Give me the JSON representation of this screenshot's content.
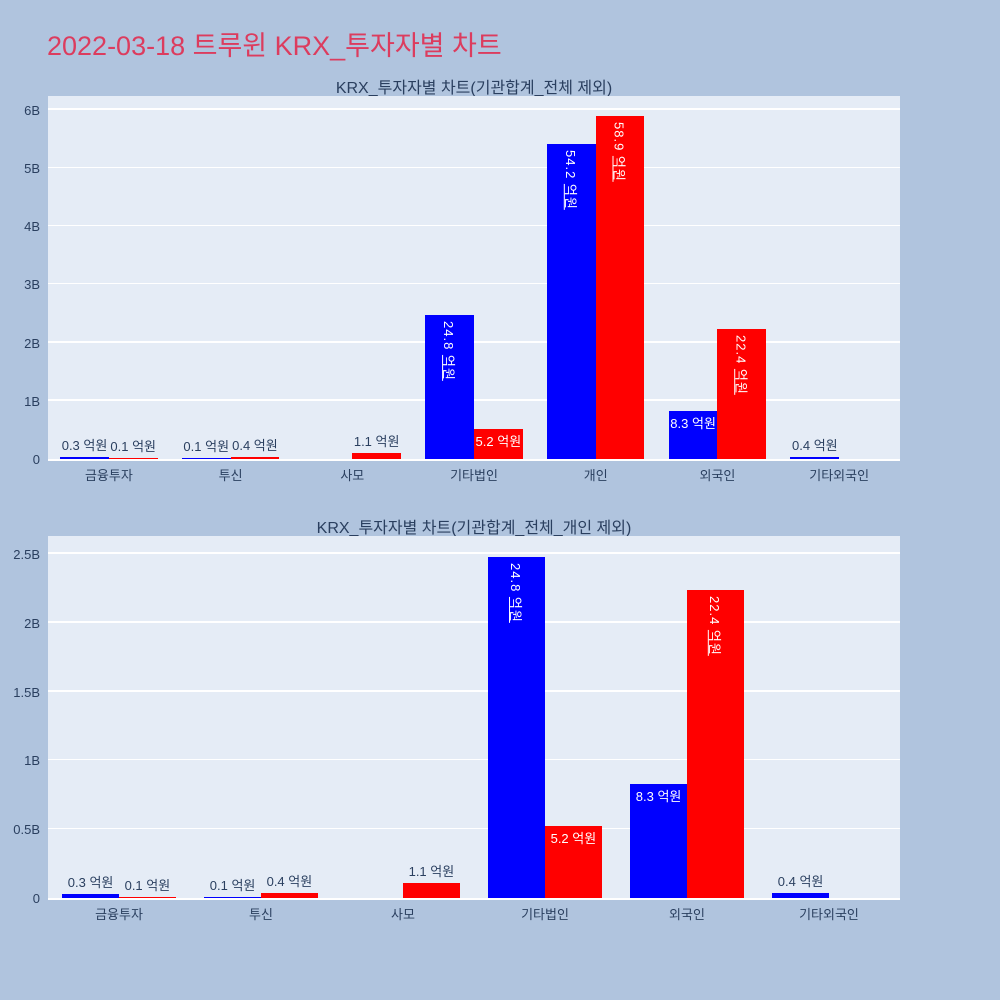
{
  "page": {
    "title": "2022-03-18 트루윈 KRX_투자자별 차트"
  },
  "colors": {
    "page_bg": "#b0c4de",
    "plot_bg": "#e5ecf6",
    "grid": "#ffffff",
    "bar_blue": "#0000ff",
    "bar_red": "#ff0000",
    "axis_text": "#2a3f5f",
    "main_title": "#dc3c5e",
    "label_inside": "#ffffff"
  },
  "chart_data": [
    {
      "type": "bar",
      "title": "KRX_투자자별 차트(기관합계_전체 제외)",
      "unit": "억원",
      "grid": true,
      "legend": "none",
      "categories": [
        "금융투자",
        "투신",
        "사모",
        "기타법인",
        "개인",
        "외국인",
        "기타외국인"
      ],
      "ylim_B": [
        0,
        6.24
      ],
      "yticks": [
        {
          "v": 0,
          "label": "0"
        },
        {
          "v": 1,
          "label": "1B"
        },
        {
          "v": 2,
          "label": "2B"
        },
        {
          "v": 3,
          "label": "3B"
        },
        {
          "v": 4,
          "label": "4B"
        },
        {
          "v": 5,
          "label": "5B"
        },
        {
          "v": 6,
          "label": "6B"
        }
      ],
      "series": [
        {
          "name": "series-blue",
          "color": "#0000ff",
          "values_eok": [
            0.3,
            0.1,
            null,
            24.8,
            54.2,
            8.3,
            0.4
          ],
          "values_B": [
            0.03,
            0.01,
            null,
            2.48,
            5.42,
            0.83,
            0.04
          ],
          "labels": [
            "0.3 억원",
            "0.1 억원",
            "",
            "24.8 억원",
            "54.2 억원",
            "8.3 억원",
            "0.4 억원"
          ],
          "label_modes": [
            "out",
            "out",
            "none",
            "inv",
            "inv",
            "inh",
            "out"
          ]
        },
        {
          "name": "series-red",
          "color": "#ff0000",
          "values_eok": [
            0.1,
            0.4,
            1.1,
            5.2,
            58.9,
            22.4,
            null
          ],
          "values_B": [
            0.01,
            0.04,
            0.11,
            0.52,
            5.89,
            2.24,
            null
          ],
          "labels": [
            "0.1 억원",
            "0.4 억원",
            "1.1 억원",
            "5.2 억원",
            "58.9 억원",
            "22.4 억원",
            ""
          ],
          "label_modes": [
            "out",
            "out",
            "out",
            "inh",
            "inv",
            "inv",
            "none"
          ]
        }
      ]
    },
    {
      "type": "bar",
      "title": "KRX_투자자별 차트(기관합계_전체_개인 제외)",
      "unit": "억원",
      "grid": true,
      "legend": "none",
      "categories": [
        "금융투자",
        "투신",
        "사모",
        "기타법인",
        "외국인",
        "기타외국인"
      ],
      "ylim_B": [
        0,
        2.63
      ],
      "yticks": [
        {
          "v": 0,
          "label": "0"
        },
        {
          "v": 0.5,
          "label": "0.5B"
        },
        {
          "v": 1,
          "label": "1B"
        },
        {
          "v": 1.5,
          "label": "1.5B"
        },
        {
          "v": 2,
          "label": "2B"
        },
        {
          "v": 2.5,
          "label": "2.5B"
        }
      ],
      "series": [
        {
          "name": "series-blue",
          "color": "#0000ff",
          "values_eok": [
            0.3,
            0.1,
            null,
            24.8,
            8.3,
            0.4
          ],
          "values_B": [
            0.03,
            0.01,
            null,
            2.48,
            0.83,
            0.04
          ],
          "labels": [
            "0.3 억원",
            "0.1 억원",
            "",
            "24.8 억원",
            "8.3 억원",
            "0.4 억원"
          ],
          "label_modes": [
            "out",
            "out",
            "none",
            "inv",
            "inh",
            "out"
          ]
        },
        {
          "name": "series-red",
          "color": "#ff0000",
          "values_eok": [
            0.1,
            0.4,
            1.1,
            5.2,
            22.4,
            null
          ],
          "values_B": [
            0.01,
            0.04,
            0.11,
            0.52,
            2.24,
            null
          ],
          "labels": [
            "0.1 억원",
            "0.4 억원",
            "1.1 억원",
            "5.2 억원",
            "22.4 억원",
            ""
          ],
          "label_modes": [
            "out",
            "out",
            "out",
            "inh",
            "inv",
            "none"
          ]
        }
      ]
    }
  ]
}
